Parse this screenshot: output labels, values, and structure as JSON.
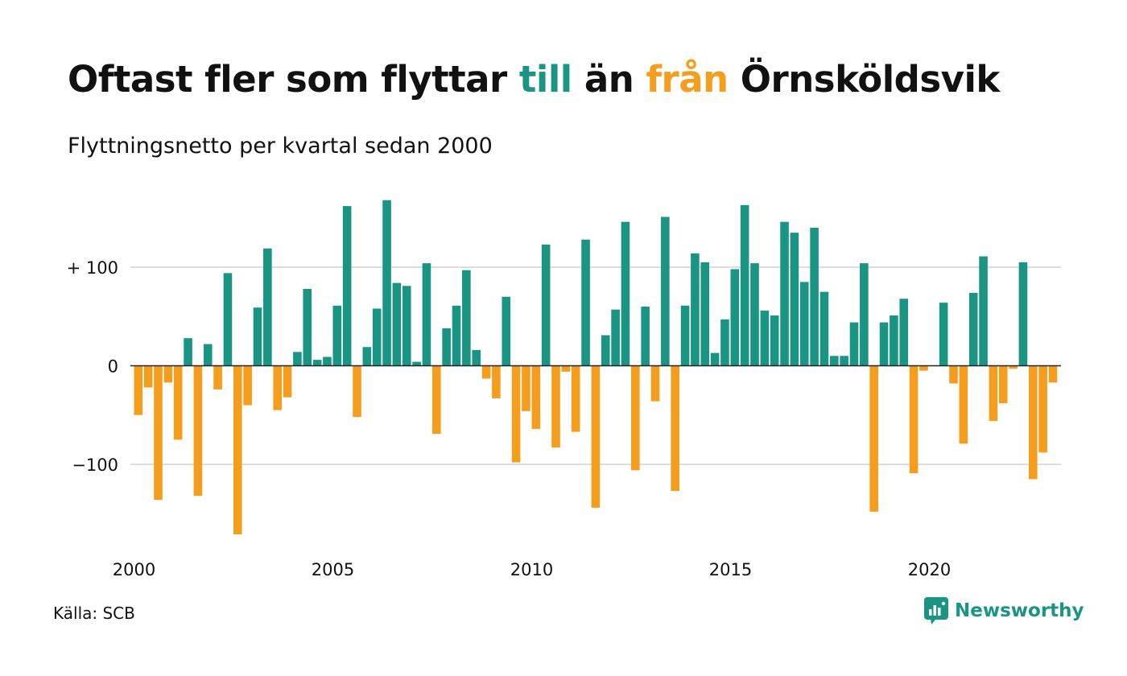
{
  "title": {
    "part1": "Oftast fler som flyttar ",
    "part2": "till",
    "part3": " än ",
    "part4": "från",
    "part5": " Örnsköldsvik"
  },
  "subtitle": "Flyttningsnetto per kvartal sedan 2000",
  "source": "Källa: SCB",
  "brand": {
    "name": "Newsworthy",
    "icon": "chart-bubble-icon"
  },
  "colors": {
    "positive": "#1a9584",
    "negative": "#f59d1c",
    "grid": "#dddddd",
    "text": "#111111"
  },
  "chart_data": {
    "type": "bar",
    "title": "Oftast fler som flyttar till än från Örnsköldsvik",
    "subtitle": "Flyttningsnetto per kvartal sedan 2000",
    "xlabel": "",
    "ylabel": "",
    "ylim": [
      -170,
      170
    ],
    "yticks": [
      {
        "value": 100,
        "label": "+ 100"
      },
      {
        "value": 0,
        "label": "0"
      },
      {
        "value": -100,
        "label": "−100"
      }
    ],
    "xticks": [
      {
        "year": 2000,
        "label": "2000"
      },
      {
        "year": 2005,
        "label": "2005"
      },
      {
        "year": 2010,
        "label": "2010"
      },
      {
        "year": 2015,
        "label": "2015"
      },
      {
        "year": 2020,
        "label": "2020"
      }
    ],
    "grid": true,
    "start_period": "2000 Q1",
    "values": [
      -50,
      -22,
      -136,
      -17,
      -75,
      28,
      -132,
      22,
      -24,
      94,
      -171,
      -40,
      59,
      119,
      -45,
      -32,
      14,
      78,
      6,
      9,
      61,
      162,
      -52,
      19,
      58,
      168,
      84,
      81,
      4,
      104,
      -69,
      38,
      61,
      97,
      16,
      -13,
      -33,
      70,
      -98,
      -46,
      -64,
      123,
      -83,
      -6,
      -67,
      128,
      -144,
      31,
      57,
      146,
      -106,
      60,
      -36,
      151,
      -127,
      61,
      114,
      105,
      13,
      47,
      98,
      163,
      104,
      56,
      51,
      146,
      135,
      85,
      140,
      75,
      10,
      10,
      44,
      104,
      -148,
      44,
      51,
      68,
      -109,
      -5,
      0,
      64,
      -18,
      -79,
      74,
      111,
      -56,
      -38,
      -3,
      105,
      -115,
      -88,
      -17
    ]
  }
}
